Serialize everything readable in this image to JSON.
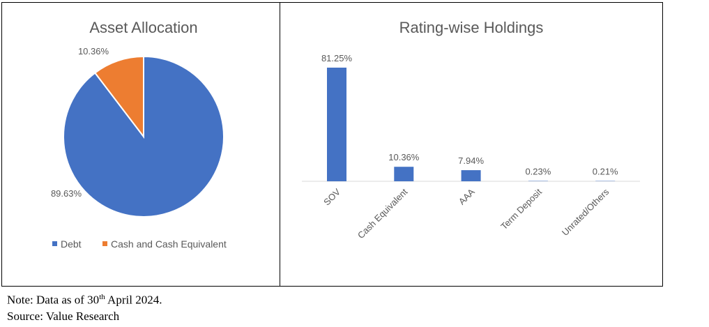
{
  "chart_data": [
    {
      "type": "pie",
      "title": "Asset Allocation",
      "slices": [
        {
          "name": "Debt",
          "value": 89.63,
          "label": "89.63%",
          "color": "#4472C4"
        },
        {
          "name": "Cash and Cash Equivalent",
          "value": 10.36,
          "label": "10.36%",
          "color": "#ED7D31"
        }
      ],
      "legend": "bottom"
    },
    {
      "type": "bar",
      "title": "Rating-wise Holdings",
      "categories": [
        "SOV",
        "Cash Equivalent",
        "AAA",
        "Term Deposit",
        "Unrated/Others"
      ],
      "values": [
        81.25,
        10.36,
        7.94,
        0.23,
        0.21
      ],
      "data_labels": [
        "81.25%",
        "10.36%",
        "7.94%",
        "0.23%",
        "0.21%"
      ],
      "color": "#4472C4",
      "ylim": [
        0,
        81.25
      ],
      "grid": false
    }
  ],
  "notes": {
    "note_prefix": "Note: Data as of 30",
    "note_sup": "th",
    "note_suffix": " April 2024.",
    "source": "Source: Value Research"
  }
}
